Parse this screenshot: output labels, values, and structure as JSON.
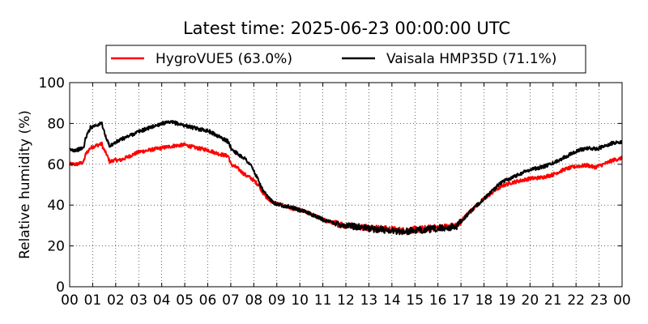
{
  "chart_data": {
    "type": "line",
    "title": "Latest time: 2025-06-23 00:00:00 UTC",
    "xlabel": "",
    "ylabel": "Relative humidity (%)",
    "xlim": [
      0,
      24
    ],
    "ylim": [
      0,
      100
    ],
    "grid": true,
    "legend_position": "top",
    "x_ticks": [
      "00",
      "01",
      "02",
      "03",
      "04",
      "05",
      "06",
      "07",
      "08",
      "09",
      "10",
      "11",
      "12",
      "13",
      "14",
      "15",
      "16",
      "17",
      "18",
      "19",
      "20",
      "21",
      "22",
      "23",
      "00"
    ],
    "y_ticks": [
      "0",
      "20",
      "40",
      "60",
      "80",
      "100"
    ],
    "series": [
      {
        "name": "HygroVUE5 (63.0%)",
        "color": "#ff0000",
        "x": [
          0,
          0.3,
          0.6,
          0.7,
          0.9,
          1.1,
          1.4,
          1.45,
          1.6,
          1.75,
          1.9,
          2.2,
          2.6,
          3.0,
          3.5,
          4.0,
          4.5,
          5.0,
          5.5,
          6.0,
          6.5,
          6.9,
          7.0,
          7.3,
          7.6,
          7.9,
          8.2,
          8.4,
          8.6,
          8.9,
          9.2,
          9.6,
          10.0,
          10.4,
          10.8,
          11.2,
          11.6,
          12.0,
          12.5,
          13.0,
          13.5,
          14.0,
          14.5,
          15.0,
          15.5,
          16.0,
          16.5,
          16.8,
          17.0,
          17.3,
          17.6,
          18.0,
          18.4,
          18.8,
          19.2,
          19.6,
          20.0,
          20.5,
          21.0,
          21.5,
          22.0,
          22.5,
          22.8,
          23.2,
          23.6,
          24.0
        ],
        "y": [
          60,
          60,
          61,
          65,
          68,
          69,
          70,
          68,
          65,
          61,
          62,
          62,
          64,
          66,
          67,
          68,
          69,
          69.5,
          68,
          67,
          65,
          64,
          60,
          58,
          55,
          53,
          50,
          46,
          43,
          41,
          40,
          38.5,
          37.5,
          36,
          34,
          32,
          31,
          30,
          29.5,
          29,
          28.5,
          28,
          27.5,
          28,
          28.5,
          29,
          29.5,
          30,
          32,
          36,
          39,
          43,
          46.5,
          49.5,
          51,
          52,
          53,
          53.5,
          55,
          57.5,
          59,
          59.5,
          58.5,
          60,
          62,
          63
        ]
      },
      {
        "name": "Vaisala HMP35D (71.1%)",
        "color": "#000000",
        "x": [
          0,
          0.3,
          0.6,
          0.7,
          0.9,
          1.1,
          1.4,
          1.45,
          1.6,
          1.75,
          1.9,
          2.2,
          2.6,
          3.0,
          3.5,
          4.0,
          4.5,
          5.0,
          5.5,
          6.0,
          6.5,
          6.9,
          7.0,
          7.3,
          7.6,
          7.9,
          8.2,
          8.4,
          8.6,
          8.9,
          9.2,
          9.6,
          10.0,
          10.4,
          10.8,
          11.2,
          11.6,
          12.0,
          12.5,
          13.0,
          13.5,
          14.0,
          14.5,
          15.0,
          15.5,
          16.0,
          16.5,
          16.8,
          17.0,
          17.3,
          17.6,
          18.0,
          18.4,
          18.8,
          19.2,
          19.6,
          20.0,
          20.5,
          21.0,
          21.5,
          22.0,
          22.5,
          22.8,
          23.2,
          23.6,
          24.0
        ],
        "y": [
          67,
          67,
          68,
          73,
          78,
          79,
          80,
          78,
          72,
          69,
          70,
          72,
          74,
          76,
          78,
          80,
          80.5,
          79,
          77.5,
          76.5,
          73.5,
          71,
          68,
          65,
          63,
          59,
          52,
          47,
          44,
          41,
          40,
          39,
          37.5,
          36,
          34,
          32,
          31,
          30,
          29.5,
          28.5,
          28,
          27.5,
          27,
          27.5,
          28,
          28.5,
          29,
          29.5,
          32,
          35.5,
          39,
          43,
          47.5,
          51.5,
          53.5,
          55.5,
          57.5,
          58.5,
          60.5,
          63.5,
          66.5,
          68,
          67.5,
          68.5,
          70.5,
          71
        ]
      }
    ]
  }
}
